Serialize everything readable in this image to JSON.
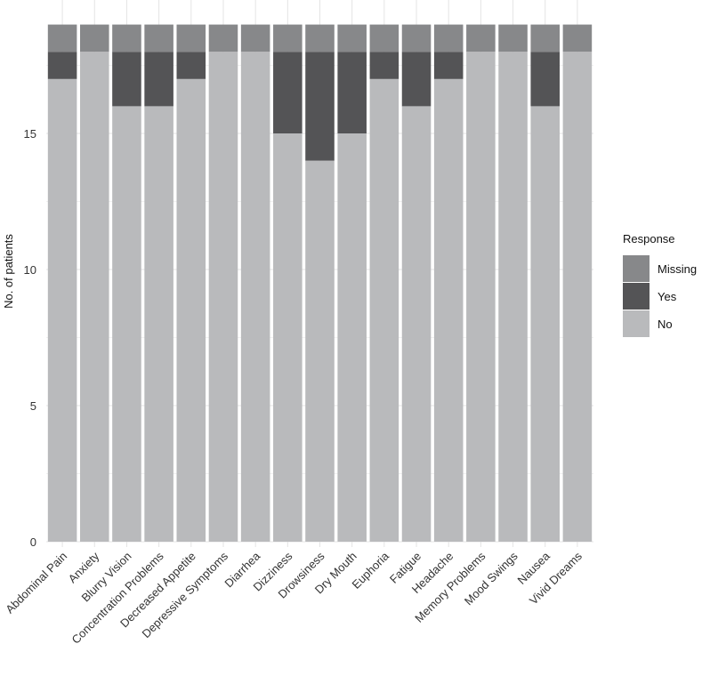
{
  "chart_data": {
    "type": "bar",
    "stacked": true,
    "title": "",
    "xlabel": "",
    "ylabel": "No. of patients",
    "ylim": [
      0,
      19
    ],
    "yticks": [
      0,
      5,
      10,
      15
    ],
    "grid": true,
    "legend_position": "right",
    "legend_title": "Response",
    "legend_order": [
      "Missing",
      "Yes",
      "No"
    ],
    "categories": [
      "Abdominal Pain",
      "Anxiety",
      "Blurry Vision",
      "Concentration Problems",
      "Decreased Appetite",
      "Depressive Symptoms",
      "Diarrhea",
      "Dizziness",
      "Drowsiness",
      "Dry Mouth",
      "Euphoria",
      "Fatigue",
      "Headache",
      "Memory Problems",
      "Mood Swings",
      "Nausea",
      "Vivid Dreams"
    ],
    "series": [
      {
        "name": "No",
        "color": "#b9babc",
        "values": [
          17,
          18,
          16,
          16,
          17,
          18,
          18,
          15,
          14,
          15,
          17,
          16,
          17,
          18,
          18,
          16,
          18
        ]
      },
      {
        "name": "Yes",
        "color": "#545456",
        "values": [
          1,
          0,
          2,
          2,
          1,
          0,
          0,
          3,
          4,
          3,
          1,
          2,
          1,
          0,
          0,
          2,
          0
        ]
      },
      {
        "name": "Missing",
        "color": "#87888a",
        "values": [
          1,
          1,
          1,
          1,
          1,
          1,
          1,
          1,
          1,
          1,
          1,
          1,
          1,
          1,
          1,
          1,
          1
        ]
      }
    ]
  }
}
